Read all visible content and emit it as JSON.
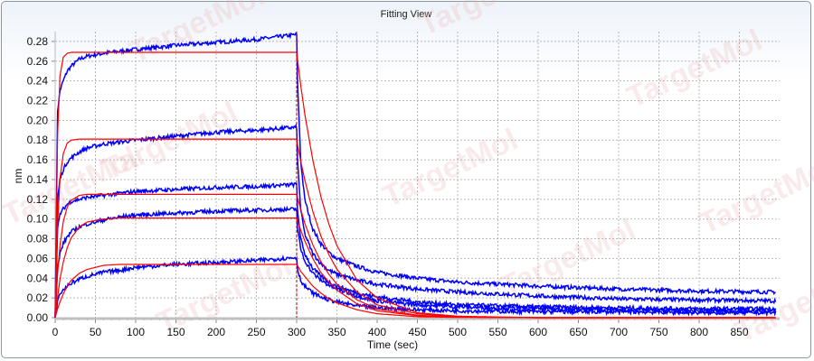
{
  "window": {
    "title": "Fitting View"
  },
  "watermark": "TargetMol",
  "chart_data": {
    "type": "line",
    "title": "Fitting View",
    "xlabel": "Time (sec)",
    "ylabel": "nm",
    "xlim": [
      0,
      900
    ],
    "ylim": [
      0,
      0.29
    ],
    "xticks": [
      "0",
      "50",
      "100",
      "150",
      "200",
      "250",
      "300",
      "350",
      "400",
      "450",
      "500",
      "550",
      "600",
      "650",
      "700",
      "750",
      "800",
      "850"
    ],
    "yticks": [
      "0.00",
      "0.02",
      "0.04",
      "0.06",
      "0.08",
      "0.10",
      "0.12",
      "0.14",
      "0.16",
      "0.18",
      "0.20",
      "0.22",
      "0.24",
      "0.26",
      "0.28"
    ],
    "grid": true,
    "legend": "none",
    "association_end_marker": 300,
    "colors": {
      "observed": "#0000ff",
      "fit": "#ff0000",
      "marker": "#b00000"
    },
    "x": [
      0,
      3,
      6,
      10,
      15,
      20,
      30,
      40,
      60,
      80,
      100,
      150,
      200,
      250,
      300,
      301,
      305,
      310,
      320,
      330,
      340,
      350,
      375,
      400,
      450,
      500,
      600,
      700,
      800,
      895
    ],
    "observed": [
      {
        "values": [
          0,
          0.21,
          0.23,
          0.24,
          0.25,
          0.255,
          0.262,
          0.265,
          0.268,
          0.27,
          0.272,
          0.276,
          0.279,
          0.282,
          0.287,
          0.24,
          0.16,
          0.12,
          0.09,
          0.075,
          0.066,
          0.06,
          0.052,
          0.046,
          0.04,
          0.036,
          0.032,
          0.029,
          0.027,
          0.026
        ]
      },
      {
        "values": [
          0,
          0.12,
          0.14,
          0.15,
          0.158,
          0.162,
          0.168,
          0.172,
          0.176,
          0.178,
          0.18,
          0.184,
          0.188,
          0.19,
          0.193,
          0.16,
          0.11,
          0.085,
          0.065,
          0.055,
          0.048,
          0.044,
          0.038,
          0.034,
          0.029,
          0.026,
          0.022,
          0.019,
          0.018,
          0.017
        ]
      },
      {
        "values": [
          0,
          0.09,
          0.105,
          0.11,
          0.115,
          0.118,
          0.12,
          0.122,
          0.124,
          0.126,
          0.128,
          0.13,
          0.132,
          0.133,
          0.135,
          0.11,
          0.08,
          0.065,
          0.05,
          0.042,
          0.036,
          0.032,
          0.025,
          0.021,
          0.016,
          0.013,
          0.011,
          0.01,
          0.009,
          0.009
        ]
      },
      {
        "values": [
          0,
          0.05,
          0.065,
          0.075,
          0.082,
          0.087,
          0.092,
          0.095,
          0.099,
          0.102,
          0.104,
          0.106,
          0.108,
          0.109,
          0.11,
          0.09,
          0.07,
          0.058,
          0.045,
          0.038,
          0.033,
          0.029,
          0.022,
          0.017,
          0.013,
          0.011,
          0.009,
          0.008,
          0.007,
          0.007
        ]
      },
      {
        "values": [
          0,
          0.018,
          0.024,
          0.028,
          0.032,
          0.035,
          0.039,
          0.042,
          0.046,
          0.048,
          0.051,
          0.054,
          0.056,
          0.058,
          0.061,
          0.05,
          0.038,
          0.032,
          0.025,
          0.021,
          0.018,
          0.016,
          0.012,
          0.01,
          0.008,
          0.007,
          0.006,
          0.006,
          0.005,
          0.005
        ]
      }
    ],
    "fit": [
      {
        "values": [
          0,
          0.186,
          0.245,
          0.264,
          0.268,
          0.269,
          0.269,
          0.269,
          0.269,
          0.269,
          0.269,
          0.269,
          0.269,
          0.269,
          0.269,
          0.262,
          0.236,
          0.207,
          0.16,
          0.123,
          0.095,
          0.073,
          0.038,
          0.02,
          0.005,
          0.0015,
          0,
          0,
          0,
          0
        ]
      },
      {
        "values": [
          0,
          0.095,
          0.141,
          0.166,
          0.177,
          0.18,
          0.181,
          0.181,
          0.181,
          0.181,
          0.181,
          0.181,
          0.181,
          0.181,
          0.181,
          0.176,
          0.159,
          0.14,
          0.108,
          0.083,
          0.064,
          0.049,
          0.026,
          0.013,
          0.004,
          0.001,
          0,
          0,
          0,
          0
        ]
      },
      {
        "values": [
          0,
          0.045,
          0.073,
          0.097,
          0.112,
          0.119,
          0.124,
          0.125,
          0.125,
          0.125,
          0.125,
          0.125,
          0.125,
          0.125,
          0.125,
          0.122,
          0.11,
          0.096,
          0.074,
          0.057,
          0.044,
          0.034,
          0.018,
          0.009,
          0.0025,
          0.0007,
          0,
          0,
          0,
          0
        ]
      },
      {
        "values": [
          0,
          0.021,
          0.039,
          0.056,
          0.071,
          0.081,
          0.092,
          0.097,
          0.1,
          0.101,
          0.101,
          0.101,
          0.101,
          0.101,
          0.101,
          0.098,
          0.089,
          0.078,
          0.06,
          0.046,
          0.036,
          0.028,
          0.014,
          0.007,
          0.002,
          0.0006,
          0,
          0,
          0,
          0
        ]
      },
      {
        "values": [
          0,
          0.009,
          0.016,
          0.024,
          0.032,
          0.038,
          0.045,
          0.049,
          0.053,
          0.054,
          0.054,
          0.054,
          0.054,
          0.054,
          0.054,
          0.053,
          0.047,
          0.042,
          0.032,
          0.025,
          0.019,
          0.015,
          0.008,
          0.004,
          0.001,
          0.0003,
          0,
          0,
          0,
          0
        ]
      }
    ]
  }
}
